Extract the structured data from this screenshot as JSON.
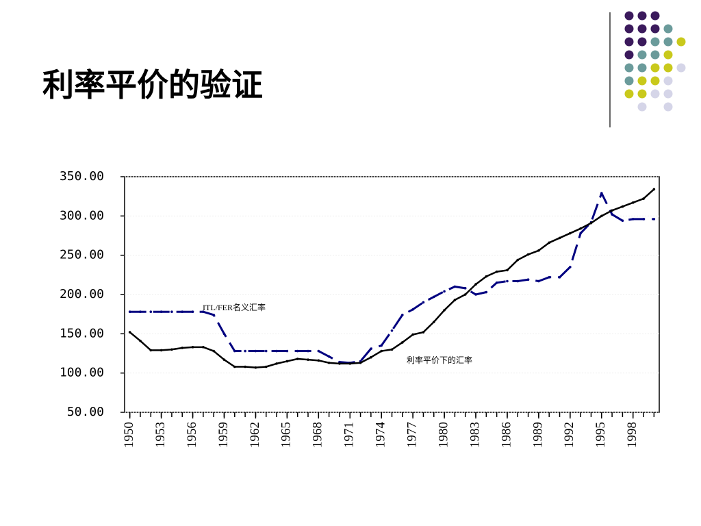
{
  "chart_data": {
    "type": "line",
    "title": "利率平价的验证",
    "x": [
      1950,
      1951,
      1952,
      1953,
      1954,
      1955,
      1956,
      1957,
      1958,
      1959,
      1960,
      1961,
      1962,
      1963,
      1964,
      1965,
      1966,
      1967,
      1968,
      1969,
      1970,
      1971,
      1972,
      1973,
      1974,
      1975,
      1976,
      1977,
      1978,
      1979,
      1980,
      1981,
      1982,
      1983,
      1984,
      1985,
      1986,
      1987,
      1988,
      1989,
      1990,
      1991,
      1992,
      1993,
      1994,
      1995,
      1996,
      1997,
      1998,
      1999,
      2000
    ],
    "series": [
      {
        "name": "ITL/FER名义汇率",
        "color": "#000080",
        "dash": true,
        "values": [
          178,
          178,
          178,
          178,
          178,
          178,
          178,
          178,
          174,
          150,
          128,
          128,
          128,
          128,
          128,
          128,
          128,
          128,
          128,
          121,
          114,
          113,
          115,
          131,
          135,
          154,
          174,
          181,
          190,
          197,
          204,
          210,
          208,
          200,
          203,
          215,
          217,
          217,
          219,
          217,
          222,
          222,
          235,
          278,
          292,
          329,
          302,
          294,
          296,
          296,
          296
        ]
      },
      {
        "name": "利率平价下的汇率",
        "color": "#000000",
        "dash": false,
        "values": [
          152,
          141,
          129,
          129,
          130,
          132,
          133,
          133,
          128,
          117,
          108,
          108,
          107,
          108,
          112,
          115,
          118,
          117,
          116,
          113,
          112,
          112,
          113,
          120,
          128,
          130,
          139,
          149,
          152,
          165,
          180,
          193,
          200,
          213,
          223,
          229,
          231,
          244,
          251,
          256,
          266,
          272,
          278,
          284,
          291,
          300,
          307,
          312,
          317,
          322,
          334
        ]
      }
    ],
    "xlim": [
      1949.5,
      2000.5
    ],
    "xticks": [
      1950,
      1953,
      1956,
      1959,
      1962,
      1965,
      1968,
      1971,
      1974,
      1977,
      1980,
      1983,
      1986,
      1989,
      1992,
      1995,
      1998
    ],
    "ylim": [
      50,
      350
    ],
    "yticks": [
      {
        "value": 50,
        "label": "50.00"
      },
      {
        "value": 100,
        "label": "100.00"
      },
      {
        "value": 150,
        "label": "150.00"
      },
      {
        "value": 200,
        "label": "200.00"
      },
      {
        "value": 250,
        "label": "250.00"
      },
      {
        "value": 300,
        "label": "300.00"
      },
      {
        "value": 350,
        "label": "350.00"
      }
    ],
    "grid": true
  }
}
